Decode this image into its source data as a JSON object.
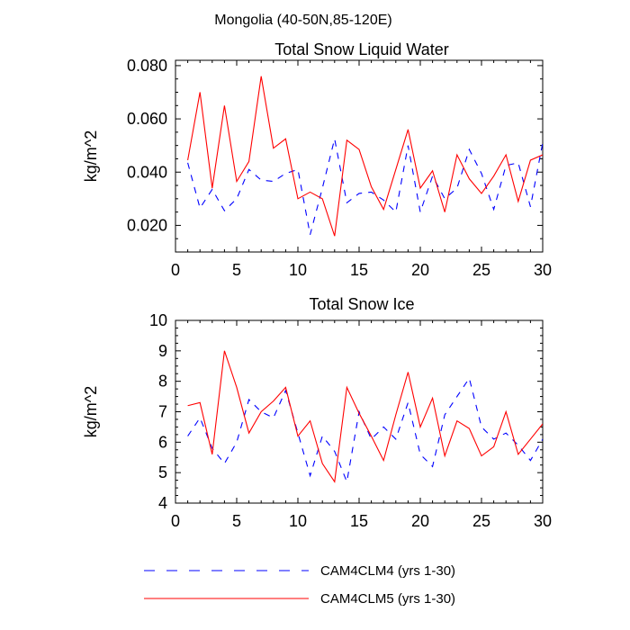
{
  "suptitle": "Mongolia (40-50N,85-120E)",
  "legend": [
    {
      "name": "CAM4CLM4 (yrs 1-30)",
      "color": "#0000ff",
      "dash": "dashed"
    },
    {
      "name": "CAM4CLM5 (yrs 1-30)",
      "color": "#ff0000",
      "dash": "solid"
    }
  ],
  "chart_data": [
    {
      "type": "line",
      "title": "Total Snow Liquid Water",
      "xlabel": "",
      "ylabel": "kg/m^2",
      "xlim": [
        0,
        30
      ],
      "ylim": [
        0.01,
        0.082
      ],
      "xticks": [
        0,
        5,
        10,
        15,
        20,
        25,
        30
      ],
      "xtick_labels": [
        "0",
        "5",
        "10",
        "15",
        "20",
        "25",
        "30"
      ],
      "yticks": [
        0.02,
        0.04,
        0.06,
        0.08
      ],
      "ytick_labels": [
        "0.020",
        "0.040",
        "0.060",
        "0.080"
      ],
      "x": [
        1,
        2,
        3,
        4,
        5,
        6,
        7,
        8,
        9,
        10,
        11,
        12,
        13,
        14,
        15,
        16,
        17,
        18,
        19,
        20,
        21,
        22,
        23,
        24,
        25,
        26,
        27,
        28,
        29,
        30
      ],
      "series": [
        {
          "name": "CAM4CLM4 (yrs 1-30)",
          "color": "#0000ff",
          "dash": "dashed",
          "values": [
            0.0435,
            0.0265,
            0.0335,
            0.0255,
            0.03,
            0.041,
            0.037,
            0.0365,
            0.0395,
            0.041,
            0.0165,
            0.034,
            0.0525,
            0.0285,
            0.032,
            0.0325,
            0.0295,
            0.025,
            0.05,
            0.025,
            0.0385,
            0.03,
            0.034,
            0.0485,
            0.0395,
            0.026,
            0.0425,
            0.0435,
            0.027,
            0.051
          ]
        },
        {
          "name": "CAM4CLM5 (yrs 1-30)",
          "color": "#ff0000",
          "dash": "solid",
          "values": [
            0.0445,
            0.07,
            0.034,
            0.065,
            0.0365,
            0.044,
            0.076,
            0.049,
            0.0525,
            0.03,
            0.0325,
            0.03,
            0.016,
            0.052,
            0.0485,
            0.0345,
            0.026,
            0.041,
            0.056,
            0.034,
            0.0405,
            0.025,
            0.0465,
            0.0375,
            0.032,
            0.0385,
            0.0465,
            0.029,
            0.0445,
            0.0465
          ]
        }
      ]
    },
    {
      "type": "line",
      "title": "Total Snow Ice",
      "xlabel": "",
      "ylabel": "kg/m^2",
      "xlim": [
        0,
        30
      ],
      "ylim": [
        4,
        10
      ],
      "xticks": [
        0,
        5,
        10,
        15,
        20,
        25,
        30
      ],
      "xtick_labels": [
        "0",
        "5",
        "10",
        "15",
        "20",
        "25",
        "30"
      ],
      "yticks": [
        4,
        5,
        6,
        7,
        8,
        9,
        10
      ],
      "ytick_labels": [
        "4",
        "5",
        "6",
        "7",
        "8",
        "9",
        "10"
      ],
      "x": [
        1,
        2,
        3,
        4,
        5,
        6,
        7,
        8,
        9,
        10,
        11,
        12,
        13,
        14,
        15,
        16,
        17,
        18,
        19,
        20,
        21,
        22,
        23,
        24,
        25,
        26,
        27,
        28,
        29,
        30
      ],
      "series": [
        {
          "name": "CAM4CLM4 (yrs 1-30)",
          "color": "#0000ff",
          "dash": "dashed",
          "values": [
            6.2,
            6.8,
            5.8,
            5.3,
            6.0,
            7.4,
            7.0,
            6.8,
            7.7,
            6.3,
            4.9,
            6.2,
            5.7,
            4.7,
            7.0,
            6.1,
            6.5,
            6.1,
            7.3,
            5.6,
            5.2,
            6.9,
            7.5,
            8.1,
            6.5,
            6.1,
            6.3,
            5.9,
            5.4,
            6.1
          ]
        },
        {
          "name": "CAM4CLM5 (yrs 1-30)",
          "color": "#ff0000",
          "dash": "solid",
          "values": [
            7.2,
            7.3,
            5.6,
            9.0,
            7.8,
            6.3,
            7.0,
            7.35,
            7.8,
            6.2,
            6.7,
            5.3,
            4.7,
            7.8,
            6.95,
            6.2,
            5.4,
            6.9,
            8.3,
            6.5,
            7.45,
            5.55,
            6.7,
            6.45,
            5.55,
            5.85,
            7.0,
            5.6,
            6.1,
            6.6
          ]
        }
      ]
    }
  ]
}
